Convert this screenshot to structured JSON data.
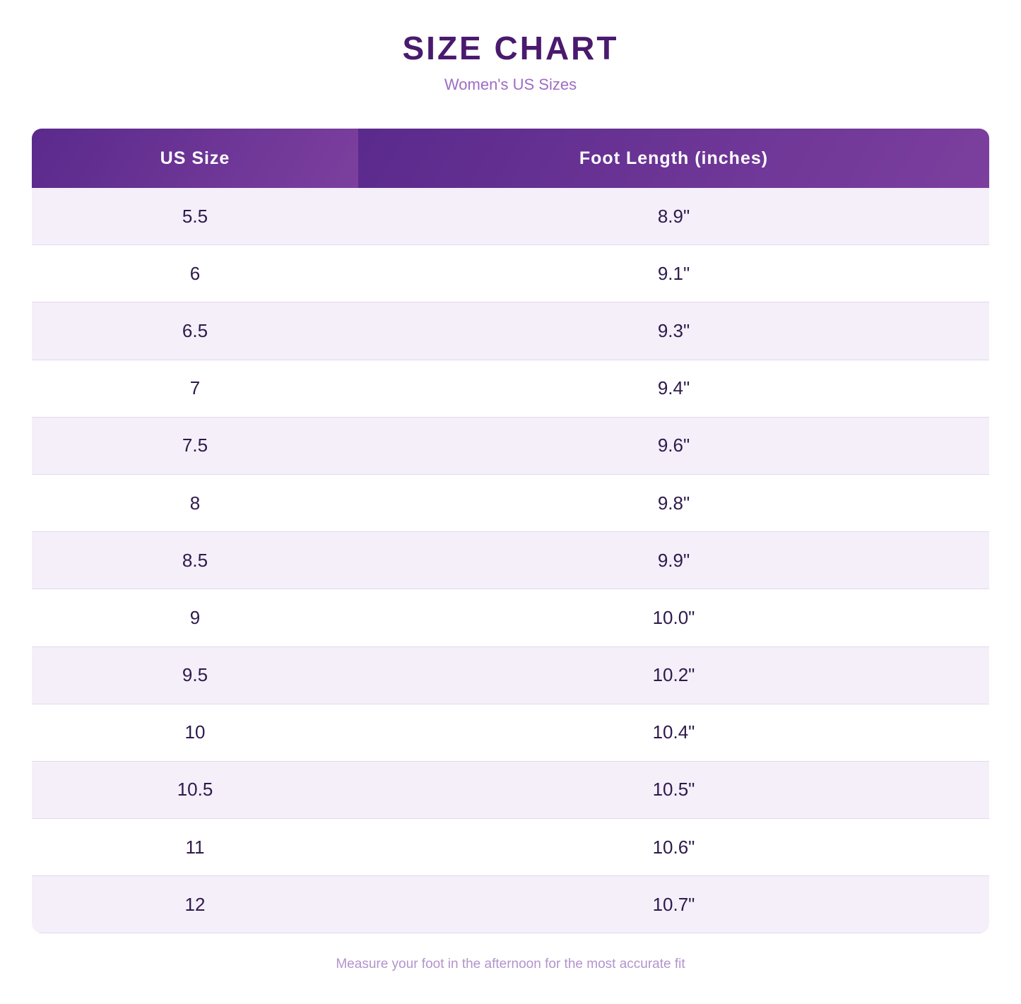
{
  "header": {
    "title": "SIZE CHART",
    "subtitle": "Women's US Sizes"
  },
  "table": {
    "columns": [
      "US Size",
      "Foot Length (inches)"
    ],
    "rows": [
      [
        "5.5",
        "8.9\""
      ],
      [
        "6",
        "9.1\""
      ],
      [
        "6.5",
        "9.3\""
      ],
      [
        "7",
        "9.4\""
      ],
      [
        "7.5",
        "9.6\""
      ],
      [
        "8",
        "9.8\""
      ],
      [
        "8.5",
        "9.9\""
      ],
      [
        "9",
        "10.0\""
      ],
      [
        "9.5",
        "10.2\""
      ],
      [
        "10",
        "10.4\""
      ],
      [
        "10.5",
        "10.5\""
      ],
      [
        "11",
        "10.6\""
      ],
      [
        "12",
        "10.7\""
      ]
    ]
  },
  "footer": {
    "note": "Measure your foot in the afternoon for the most accurate fit"
  }
}
